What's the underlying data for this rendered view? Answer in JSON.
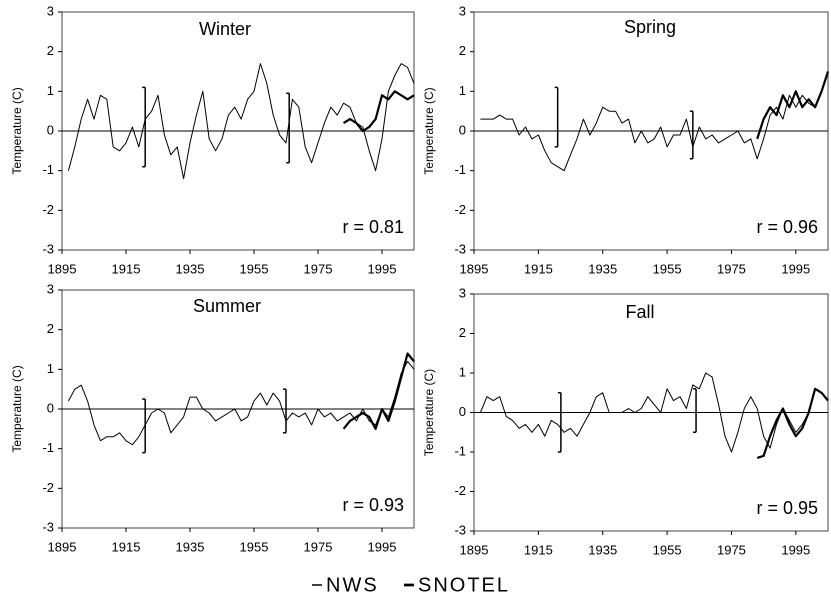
{
  "chart_data": [
    {
      "type": "line",
      "title": "Winter",
      "ylabel": "Temperature (C)",
      "annotation": "r = 0.81",
      "xlim": [
        1895,
        2005
      ],
      "xticks": [
        1895,
        1915,
        1935,
        1955,
        1975,
        1995
      ],
      "ylim": [
        -3,
        3
      ],
      "yticks": [
        -3,
        -2,
        -1,
        0,
        1,
        2,
        3
      ],
      "x": [
        1897,
        1899,
        1901,
        1903,
        1905,
        1907,
        1909,
        1911,
        1913,
        1915,
        1917,
        1919,
        1921,
        1923,
        1925,
        1927,
        1929,
        1931,
        1933,
        1935,
        1937,
        1939,
        1941,
        1943,
        1945,
        1947,
        1949,
        1951,
        1953,
        1955,
        1957,
        1959,
        1961,
        1963,
        1965,
        1967,
        1969,
        1971,
        1973,
        1975,
        1977,
        1979,
        1981,
        1983,
        1985,
        1987,
        1989,
        1991,
        1993,
        1995,
        1997,
        1999,
        2001,
        2003,
        2005
      ],
      "series": [
        {
          "name": "NWS",
          "color": "#000000",
          "line_width": 1,
          "values": [
            -1.0,
            -0.4,
            0.3,
            0.8,
            0.3,
            0.9,
            0.8,
            -0.4,
            -0.5,
            -0.3,
            0.1,
            -0.4,
            0.3,
            0.5,
            0.9,
            -0.1,
            -0.6,
            -0.4,
            -1.2,
            -0.3,
            0.4,
            1.0,
            -0.2,
            -0.5,
            -0.2,
            0.4,
            0.6,
            0.3,
            0.8,
            1.0,
            1.7,
            1.2,
            0.4,
            -0.1,
            -0.3,
            0.8,
            0.6,
            -0.4,
            -0.8,
            -0.3,
            0.2,
            0.6,
            0.4,
            0.7,
            0.6,
            0.2,
            0.1,
            -0.5,
            -1.0,
            -0.2,
            1.0,
            1.4,
            1.7,
            1.6,
            1.2
          ]
        },
        {
          "name": "SNOTEL",
          "color": "#000000",
          "line_width": 2.2,
          "values": [
            null,
            null,
            null,
            null,
            null,
            null,
            null,
            null,
            null,
            null,
            null,
            null,
            null,
            null,
            null,
            null,
            null,
            null,
            null,
            null,
            null,
            null,
            null,
            null,
            null,
            null,
            null,
            null,
            null,
            null,
            null,
            null,
            null,
            null,
            null,
            null,
            null,
            null,
            null,
            null,
            null,
            null,
            null,
            0.2,
            0.3,
            0.2,
            0.0,
            0.1,
            0.3,
            0.9,
            0.8,
            1.0,
            0.9,
            0.8,
            0.9
          ]
        }
      ],
      "error_bars": [
        {
          "x": 1921,
          "low": -0.9,
          "high": 1.1
        },
        {
          "x": 1966,
          "low": -0.8,
          "high": 0.95
        }
      ]
    },
    {
      "type": "line",
      "title": "Spring",
      "ylabel": "Temperature (C)",
      "annotation": "r = 0.96",
      "xlim": [
        1895,
        2005
      ],
      "xticks": [
        1895,
        1915,
        1935,
        1955,
        1975,
        1995
      ],
      "ylim": [
        -3,
        3
      ],
      "yticks": [
        -3,
        -2,
        -1,
        0,
        1,
        2,
        3
      ],
      "x": [
        1897,
        1899,
        1901,
        1903,
        1905,
        1907,
        1909,
        1911,
        1913,
        1915,
        1917,
        1919,
        1921,
        1923,
        1925,
        1927,
        1929,
        1931,
        1933,
        1935,
        1937,
        1939,
        1941,
        1943,
        1945,
        1947,
        1949,
        1951,
        1953,
        1955,
        1957,
        1959,
        1961,
        1963,
        1965,
        1967,
        1969,
        1971,
        1973,
        1975,
        1977,
        1979,
        1981,
        1983,
        1985,
        1987,
        1989,
        1991,
        1993,
        1995,
        1997,
        1999,
        2001,
        2003,
        2005
      ],
      "series": [
        {
          "name": "NWS",
          "color": "#000000",
          "line_width": 1,
          "values": [
            0.3,
            0.3,
            0.3,
            0.4,
            0.3,
            0.3,
            -0.1,
            0.1,
            -0.2,
            -0.1,
            -0.5,
            -0.8,
            -0.9,
            -1.0,
            -0.6,
            -0.2,
            0.3,
            -0.1,
            0.2,
            0.6,
            0.5,
            0.5,
            0.2,
            0.3,
            -0.3,
            0.0,
            -0.3,
            -0.2,
            0.1,
            -0.4,
            -0.1,
            -0.1,
            0.3,
            -0.4,
            0.1,
            -0.2,
            -0.1,
            -0.3,
            -0.2,
            -0.1,
            0.0,
            -0.3,
            -0.2,
            -0.7,
            -0.2,
            0.4,
            0.6,
            0.3,
            0.9,
            0.6,
            0.9,
            0.7,
            0.6,
            1.0,
            1.5
          ]
        },
        {
          "name": "SNOTEL",
          "color": "#000000",
          "line_width": 2.2,
          "values": [
            null,
            null,
            null,
            null,
            null,
            null,
            null,
            null,
            null,
            null,
            null,
            null,
            null,
            null,
            null,
            null,
            null,
            null,
            null,
            null,
            null,
            null,
            null,
            null,
            null,
            null,
            null,
            null,
            null,
            null,
            null,
            null,
            null,
            null,
            null,
            null,
            null,
            null,
            null,
            null,
            null,
            null,
            null,
            -0.2,
            0.3,
            0.6,
            0.4,
            0.9,
            0.6,
            1.0,
            0.6,
            0.8,
            0.6,
            1.0,
            1.5
          ]
        }
      ],
      "error_bars": [
        {
          "x": 1921,
          "low": -0.4,
          "high": 1.1
        },
        {
          "x": 1963,
          "low": -0.7,
          "high": 0.5
        }
      ]
    },
    {
      "type": "line",
      "title": "Summer",
      "ylabel": "Temperature (C)",
      "annotation": "r = 0.93",
      "xlim": [
        1895,
        2005
      ],
      "xticks": [
        1895,
        1915,
        1935,
        1955,
        1975,
        1995
      ],
      "ylim": [
        -3,
        3
      ],
      "yticks": [
        -3,
        -2,
        -1,
        0,
        1,
        2,
        3
      ],
      "x": [
        1897,
        1899,
        1901,
        1903,
        1905,
        1907,
        1909,
        1911,
        1913,
        1915,
        1917,
        1919,
        1921,
        1923,
        1925,
        1927,
        1929,
        1931,
        1933,
        1935,
        1937,
        1939,
        1941,
        1943,
        1945,
        1947,
        1949,
        1951,
        1953,
        1955,
        1957,
        1959,
        1961,
        1963,
        1965,
        1967,
        1969,
        1971,
        1973,
        1975,
        1977,
        1979,
        1981,
        1983,
        1985,
        1987,
        1989,
        1991,
        1993,
        1995,
        1997,
        1999,
        2001,
        2003,
        2005
      ],
      "series": [
        {
          "name": "NWS",
          "color": "#000000",
          "line_width": 1,
          "values": [
            0.2,
            0.5,
            0.6,
            0.2,
            -0.4,
            -0.8,
            -0.7,
            -0.7,
            -0.6,
            -0.8,
            -0.9,
            -0.7,
            -0.4,
            -0.1,
            0.0,
            -0.1,
            -0.6,
            -0.4,
            -0.2,
            0.3,
            0.3,
            0.0,
            -0.1,
            -0.3,
            -0.2,
            -0.1,
            0.0,
            -0.3,
            -0.2,
            0.2,
            0.4,
            0.1,
            0.4,
            0.2,
            -0.3,
            -0.1,
            -0.2,
            -0.1,
            -0.4,
            0.0,
            -0.2,
            -0.1,
            -0.3,
            -0.2,
            -0.1,
            -0.3,
            0.0,
            -0.3,
            -0.4,
            0.0,
            -0.2,
            0.3,
            0.9,
            1.2,
            1.0
          ]
        },
        {
          "name": "SNOTEL",
          "color": "#000000",
          "line_width": 2.2,
          "values": [
            null,
            null,
            null,
            null,
            null,
            null,
            null,
            null,
            null,
            null,
            null,
            null,
            null,
            null,
            null,
            null,
            null,
            null,
            null,
            null,
            null,
            null,
            null,
            null,
            null,
            null,
            null,
            null,
            null,
            null,
            null,
            null,
            null,
            null,
            null,
            null,
            null,
            null,
            null,
            null,
            null,
            null,
            null,
            -0.5,
            -0.3,
            -0.2,
            -0.1,
            -0.2,
            -0.5,
            0.0,
            -0.3,
            0.2,
            0.8,
            1.4,
            1.2
          ]
        }
      ],
      "error_bars": [
        {
          "x": 1921,
          "low": -1.1,
          "high": 0.25
        },
        {
          "x": 1965,
          "low": -0.6,
          "high": 0.5
        }
      ]
    },
    {
      "type": "line",
      "title": "Fall",
      "ylabel": "Temperature (C)",
      "annotation": "r = 0.95",
      "xlim": [
        1895,
        2005
      ],
      "xticks": [
        1895,
        1915,
        1935,
        1955,
        1975,
        1995
      ],
      "ylim": [
        -3,
        3
      ],
      "yticks": [
        -3,
        -2,
        -1,
        0,
        1,
        2,
        3
      ],
      "x": [
        1897,
        1899,
        1901,
        1903,
        1905,
        1907,
        1909,
        1911,
        1913,
        1915,
        1917,
        1919,
        1921,
        1923,
        1925,
        1927,
        1929,
        1931,
        1933,
        1935,
        1937,
        1939,
        1941,
        1943,
        1945,
        1947,
        1949,
        1951,
        1953,
        1955,
        1957,
        1959,
        1961,
        1963,
        1965,
        1967,
        1969,
        1971,
        1973,
        1975,
        1977,
        1979,
        1981,
        1983,
        1985,
        1987,
        1989,
        1991,
        1993,
        1995,
        1997,
        1999,
        2001,
        2003,
        2005
      ],
      "series": [
        {
          "name": "NWS",
          "color": "#000000",
          "line_width": 1,
          "values": [
            0.0,
            0.4,
            0.3,
            0.4,
            -0.1,
            -0.2,
            -0.4,
            -0.3,
            -0.5,
            -0.3,
            -0.6,
            -0.2,
            -0.3,
            -0.5,
            -0.4,
            -0.6,
            -0.3,
            0.0,
            0.4,
            0.5,
            0.0,
            0.0,
            0.0,
            0.1,
            0.0,
            0.1,
            0.4,
            0.2,
            0.0,
            0.6,
            0.3,
            0.4,
            0.1,
            0.7,
            0.6,
            1.0,
            0.9,
            0.2,
            -0.6,
            -1.0,
            -0.5,
            0.1,
            0.4,
            0.1,
            -0.6,
            -0.9,
            -0.3,
            0.1,
            -0.2,
            -0.5,
            -0.3,
            0.0,
            0.6,
            0.5,
            0.3
          ]
        },
        {
          "name": "SNOTEL",
          "color": "#000000",
          "line_width": 2.2,
          "values": [
            null,
            null,
            null,
            null,
            null,
            null,
            null,
            null,
            null,
            null,
            null,
            null,
            null,
            null,
            null,
            null,
            null,
            null,
            null,
            null,
            null,
            null,
            null,
            null,
            null,
            null,
            null,
            null,
            null,
            null,
            null,
            null,
            null,
            null,
            null,
            null,
            null,
            null,
            null,
            null,
            null,
            null,
            null,
            -1.15,
            -1.1,
            -0.6,
            -0.2,
            0.1,
            -0.3,
            -0.6,
            -0.4,
            0.0,
            0.6,
            0.5,
            0.3
          ]
        }
      ],
      "error_bars": [
        {
          "x": 1922,
          "low": -1.0,
          "high": 0.5
        },
        {
          "x": 1964,
          "low": -0.5,
          "high": 0.6
        }
      ]
    }
  ]
}
